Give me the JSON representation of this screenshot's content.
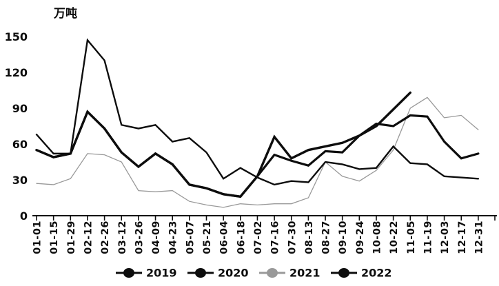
{
  "chart_data": {
    "type": "line",
    "title": "",
    "ylabel": "万吨",
    "xlabel": "",
    "yticks": [
      0,
      30,
      60,
      90,
      120,
      150
    ],
    "ylim": [
      0,
      150
    ],
    "grid": false,
    "legend_position": "bottom",
    "categories": [
      "01-01",
      "01-15",
      "01-29",
      "02-12",
      "02-26",
      "03-12",
      "03-26",
      "04-09",
      "04-23",
      "05-07",
      "05-21",
      "06-04",
      "06-18",
      "07-02",
      "07-16",
      "07-30",
      "08-13",
      "08-27",
      "09-10",
      "09-24",
      "10-08",
      "10-22",
      "11-05",
      "11-19",
      "12-03",
      "12-17",
      "12-31"
    ],
    "series": [
      {
        "name": "2019",
        "color": "#0d0d0d",
        "stroke_width": 3.2,
        "values": [
          55,
          49,
          52,
          87,
          73,
          53,
          41,
          52,
          43,
          26,
          23,
          18,
          16,
          33,
          51,
          46,
          42,
          54,
          53,
          67,
          77,
          75,
          84,
          83,
          62,
          48,
          52
        ]
      },
      {
        "name": "2020",
        "color": "#0d0d0d",
        "stroke_width": 2.4,
        "values": [
          68,
          52,
          52,
          147,
          130,
          76,
          73,
          76,
          62,
          65,
          53,
          31,
          40,
          32,
          26,
          29,
          28,
          45,
          43,
          39,
          40,
          58,
          44,
          43,
          33,
          32,
          31
        ]
      },
      {
        "name": "2021",
        "color": "#999999",
        "stroke_width": 1.3,
        "values": [
          27,
          26,
          31,
          52,
          51,
          45,
          21,
          20,
          21,
          12,
          9,
          7,
          10,
          9,
          10,
          10,
          15,
          45,
          33,
          29,
          38,
          55,
          90,
          99,
          82,
          84,
          72
        ]
      },
      {
        "name": "2022",
        "color": "#0d0d0d",
        "stroke_width": 3.4,
        "values": [
          55,
          49,
          52,
          87,
          73,
          53,
          41,
          52,
          43,
          26,
          23,
          18,
          16,
          33,
          66,
          48,
          55,
          58,
          61,
          67,
          75,
          89,
          103,
          null,
          null,
          null,
          null
        ]
      }
    ],
    "draw_order": [
      2,
      1,
      0,
      3
    ],
    "axis_color": "#0d0d0d"
  }
}
